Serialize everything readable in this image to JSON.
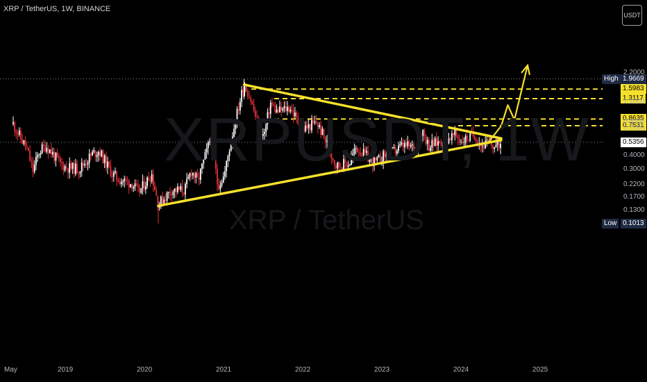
{
  "header": {
    "symbol_line": "XRP / TetherUS, 1W, BINANCE",
    "currency_button": "USDT"
  },
  "watermark": {
    "big": "XRPUSDT, 1W",
    "small": "XRP / TetherUS"
  },
  "colors": {
    "up": "#ffffff",
    "down": "#e8303a",
    "trendline": "#f5e12c",
    "level": "#f5e12c",
    "background": "#000000"
  },
  "chart_data": {
    "type": "candlestick",
    "y_scale": "log",
    "y_ticks": [
      "2.2000",
      "1.2000",
      "0.8000",
      "0.7000",
      "0.4000",
      "0.3000",
      "0.2200",
      "0.1700",
      "0.1300"
    ],
    "x_ticks": [
      "May",
      "2019",
      "2020",
      "2021",
      "2022",
      "2023",
      "2024",
      "2025"
    ],
    "high": {
      "label": "High",
      "value": "1.9669"
    },
    "low": {
      "label": "Low",
      "value": "0.1013"
    },
    "current_price": "0.5356",
    "levels": [
      "1.5983",
      "1.3117",
      "0.8635",
      "0.7531"
    ],
    "price_path": [
      [
        "2018-05",
        0.78
      ],
      [
        "2018-06",
        0.6
      ],
      [
        "2018-07",
        0.48
      ],
      [
        "2018-08",
        0.3
      ],
      [
        "2018-09",
        0.45
      ],
      [
        "2018-10",
        0.5
      ],
      [
        "2018-11",
        0.42
      ],
      [
        "2018-12",
        0.35
      ],
      [
        "2019-01",
        0.32
      ],
      [
        "2019-03",
        0.31
      ],
      [
        "2019-05",
        0.42
      ],
      [
        "2019-06",
        0.45
      ],
      [
        "2019-08",
        0.28
      ],
      [
        "2019-09",
        0.25
      ],
      [
        "2019-11",
        0.23
      ],
      [
        "2019-12",
        0.19
      ],
      [
        "2020-02",
        0.28
      ],
      [
        "2020-03",
        0.15
      ],
      [
        "2020-05",
        0.2
      ],
      [
        "2020-07",
        0.2
      ],
      [
        "2020-08",
        0.3
      ],
      [
        "2020-09",
        0.24
      ],
      [
        "2020-11",
        0.6
      ],
      [
        "2020-12",
        0.22
      ],
      [
        "2021-01",
        0.27
      ],
      [
        "2021-02",
        0.55
      ],
      [
        "2021-04",
        1.8
      ],
      [
        "2021-05",
        1.3
      ],
      [
        "2021-06",
        0.8
      ],
      [
        "2021-07",
        0.6
      ],
      [
        "2021-08",
        1.2
      ],
      [
        "2021-09",
        1.0
      ],
      [
        "2021-11",
        1.1
      ],
      [
        "2021-12",
        0.85
      ],
      [
        "2022-01",
        0.7
      ],
      [
        "2022-03",
        0.8
      ],
      [
        "2022-04",
        0.62
      ],
      [
        "2022-06",
        0.33
      ],
      [
        "2022-08",
        0.35
      ],
      [
        "2022-09",
        0.48
      ],
      [
        "2022-11",
        0.38
      ],
      [
        "2022-12",
        0.35
      ],
      [
        "2023-01",
        0.4
      ],
      [
        "2023-03",
        0.45
      ],
      [
        "2023-04",
        0.5
      ],
      [
        "2023-06",
        0.48
      ],
      [
        "2023-07",
        0.7
      ],
      [
        "2023-08",
        0.5
      ],
      [
        "2023-10",
        0.55
      ],
      [
        "2023-12",
        0.62
      ],
      [
        "2024-01",
        0.55
      ],
      [
        "2024-03",
        0.63
      ],
      [
        "2024-04",
        0.5
      ],
      [
        "2024-05",
        0.52
      ],
      [
        "2024-06",
        0.49
      ],
      [
        "2024-07",
        0.5356
      ]
    ],
    "trendlines": [
      {
        "name": "upper",
        "from": [
          "2021-04",
          1.75
        ],
        "to": [
          "2024-07",
          0.58
        ]
      },
      {
        "name": "lower",
        "from": [
          "2020-03",
          0.145
        ],
        "to": [
          "2024-07",
          0.56
        ]
      }
    ],
    "projection": [
      [
        "2024-05",
        0.53
      ],
      [
        "2024-07",
        0.75
      ],
      [
        "2024-08",
        1.15
      ],
      [
        "2024-09",
        0.85
      ],
      [
        "2024-11",
        2.6
      ]
    ],
    "ylim": [
      0.095,
      2.4
    ]
  }
}
